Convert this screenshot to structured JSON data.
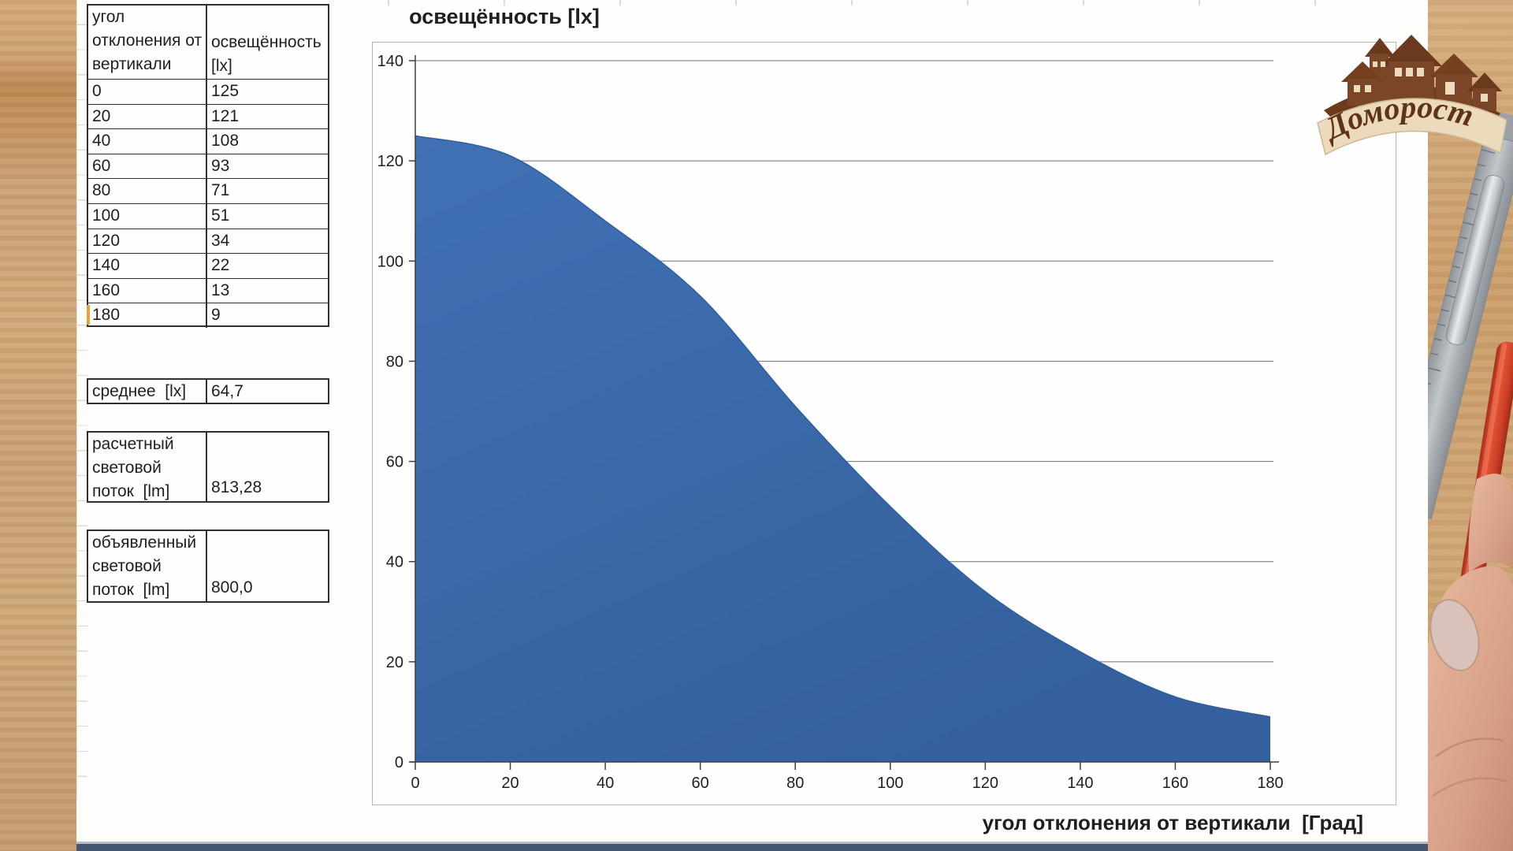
{
  "table": {
    "header": {
      "col1": "угол отклонения от вертикали",
      "col2": "освещённость [lx]"
    },
    "rows": [
      {
        "angle": "0",
        "lux": "125"
      },
      {
        "angle": "20",
        "lux": "121"
      },
      {
        "angle": "40",
        "lux": "108"
      },
      {
        "angle": "60",
        "lux": "93"
      },
      {
        "angle": "80",
        "lux": "71"
      },
      {
        "angle": "100",
        "lux": "51"
      },
      {
        "angle": "120",
        "lux": "34"
      },
      {
        "angle": "140",
        "lux": "22"
      },
      {
        "angle": "160",
        "lux": "13"
      },
      {
        "angle": "180",
        "lux": "9"
      }
    ],
    "average": {
      "label": "среднее  [lx]",
      "value": "64,7"
    },
    "calculated_flux": {
      "label": "расчетный\nсветовой\nпоток  [lm]",
      "value": "813,28"
    },
    "declared_flux": {
      "label": "объявленный\nсветовой\nпоток  [lm]",
      "value": "800,0"
    }
  },
  "chart_data": {
    "type": "area",
    "title": "освещённость [lx]",
    "xlabel": "угол отклонения от вертикали  [Град]",
    "ylabel": "",
    "x": [
      0,
      20,
      40,
      60,
      80,
      100,
      120,
      140,
      160,
      180
    ],
    "values": [
      125,
      121,
      108,
      93,
      71,
      51,
      34,
      22,
      13,
      9
    ],
    "xlim": [
      0,
      180
    ],
    "ylim": [
      0,
      140
    ],
    "x_ticks": [
      0,
      20,
      40,
      60,
      80,
      100,
      120,
      140,
      160,
      180
    ],
    "y_ticks": [
      0,
      20,
      40,
      60,
      80,
      100,
      120,
      140
    ],
    "grid": true,
    "legend": "none",
    "fill_color": "#3c6cb4"
  },
  "logo": {
    "text": "Доморост"
  },
  "colors": {
    "area_fill_top": "#4071b5",
    "area_fill_bottom": "#34619d",
    "area_edge": "#2f5e9e",
    "gridline": "#707070",
    "axis": "#3f3f3f",
    "table_border": "#2f2f2f",
    "selection_marker": "#e8a23c",
    "bottom_bar": "#42566f",
    "wood": "#cda478",
    "logo_brown": "#5f3315",
    "logo_banner": "#ecdabd",
    "tool_red": "#d6452c",
    "metal": "#a9aeb3",
    "skin": "#d9a58c"
  }
}
